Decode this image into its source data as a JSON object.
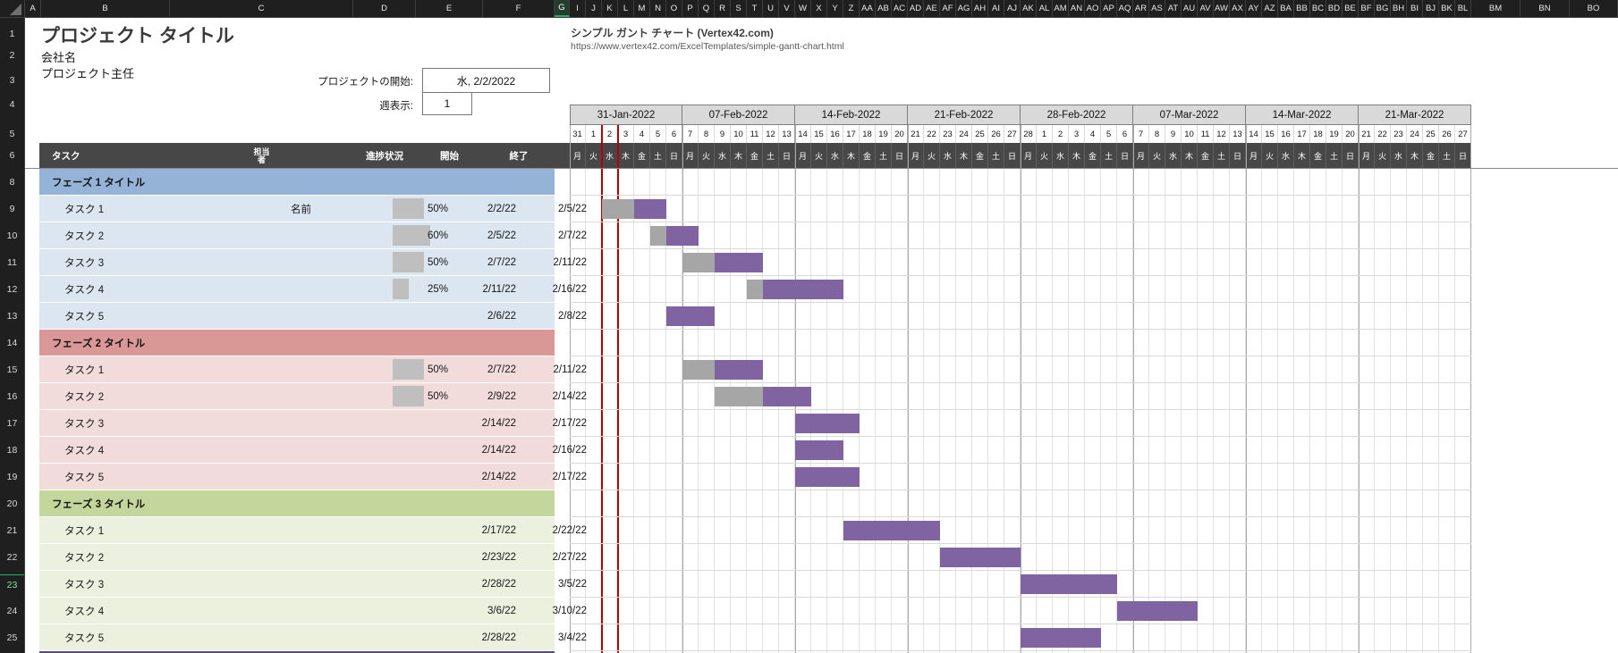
{
  "chrome": {
    "select_all": "select-all",
    "left_columns": [
      "A",
      "B",
      "C",
      "D",
      "E",
      "F",
      "G"
    ],
    "day_columns": [
      "I",
      "J",
      "K",
      "L",
      "M",
      "N",
      "O",
      "P",
      "Q",
      "R",
      "S",
      "T",
      "U",
      "V",
      "W",
      "X",
      "Y",
      "Z",
      "AA",
      "AB",
      "AC",
      "AD",
      "AE",
      "AF",
      "AG",
      "AH",
      "AI",
      "AJ",
      "AK",
      "AL",
      "AM",
      "AN",
      "AO",
      "AP",
      "AQ",
      "AR",
      "AS",
      "AT",
      "AU",
      "AV",
      "AW",
      "AX",
      "AY",
      "AZ",
      "BA",
      "BB",
      "BC",
      "BD",
      "BE",
      "BF",
      "BG",
      "BH",
      "BI",
      "BJ",
      "BK",
      "BL"
    ],
    "right_columns": [
      "BM",
      "BN",
      "BO"
    ],
    "selected_column": "G",
    "selected_row": "23",
    "row_numbers": [
      "1",
      "2",
      "3",
      "4",
      "5",
      "6",
      "8",
      "9",
      "10",
      "11",
      "12",
      "13",
      "14",
      "15",
      "16",
      "17",
      "18",
      "19",
      "20",
      "21",
      "22",
      "23",
      "24",
      "25"
    ]
  },
  "header": {
    "title": "プロジェクト タイトル",
    "company": "会社名",
    "manager": "プロジェクト主任",
    "template_name": "シンプル ガント チャート (Vertex42.com)",
    "template_url": "https://www.vertex42.com/ExcelTemplates/simple-gantt-chart.html",
    "project_start_label": "プロジェクトの開始:",
    "project_start_value": "水, 2/2/2022",
    "week_display_label": "週表示:",
    "week_display_value": "1"
  },
  "table_headers": {
    "task": "タスク",
    "owner_line1": "担当",
    "owner_line2": "者",
    "progress": "進捗状況",
    "start": "開始",
    "end": "終了"
  },
  "timeline": {
    "weekdays": [
      "月",
      "火",
      "水",
      "木",
      "金",
      "土",
      "日"
    ],
    "today_day_index": 2,
    "weeks": [
      {
        "label": "31-Jan-2022",
        "days": [
          "31",
          "1",
          "2",
          "3",
          "4",
          "5",
          "6"
        ]
      },
      {
        "label": "07-Feb-2022",
        "days": [
          "7",
          "8",
          "9",
          "10",
          "11",
          "12",
          "13"
        ]
      },
      {
        "label": "14-Feb-2022",
        "days": [
          "14",
          "15",
          "16",
          "17",
          "18",
          "19",
          "20"
        ]
      },
      {
        "label": "21-Feb-2022",
        "days": [
          "21",
          "22",
          "23",
          "24",
          "25",
          "26",
          "27"
        ]
      },
      {
        "label": "28-Feb-2022",
        "days": [
          "28",
          "1",
          "2",
          "3",
          "4",
          "5",
          "6"
        ]
      },
      {
        "label": "07-Mar-2022",
        "days": [
          "7",
          "8",
          "9",
          "10",
          "11",
          "12",
          "13"
        ]
      },
      {
        "label": "14-Mar-2022",
        "days": [
          "14",
          "15",
          "16",
          "17",
          "18",
          "19",
          "20"
        ]
      },
      {
        "label": "21-Mar-2022",
        "days": [
          "21",
          "22",
          "23",
          "24",
          "25",
          "26",
          "27"
        ]
      }
    ]
  },
  "colors": {
    "bar_purple": "#8064a2",
    "bar_gray": "#a6a6a6",
    "databar_gray": "#bfbfbf",
    "today_red": "#b30000",
    "phase1_header": "#95b3d7",
    "phase1_row": "#dce6f1",
    "phase2_header": "#d99795",
    "phase2_row": "#f2dcdb",
    "phase3_header": "#c3d69b",
    "phase3_row": "#ebf1de",
    "header_row_bg": "#474747"
  },
  "chart_data": {
    "type": "gantt",
    "sections": [
      {
        "title": "フェーズ 1 タイトル",
        "header_color": "#95b3d7",
        "row_color": "#dce6f1",
        "tasks": [
          {
            "name": "タスク 1",
            "owner": "名前",
            "progress": "50%",
            "progress_pct": 50,
            "start": "2/2/22",
            "end": "2/5/22",
            "bar": {
              "start_index": 2,
              "total_days": 4,
              "gray_days": 2
            }
          },
          {
            "name": "タスク 2",
            "owner": "",
            "progress": "60%",
            "progress_pct": 60,
            "start": "2/5/22",
            "end": "2/7/22",
            "bar": {
              "start_index": 5,
              "total_days": 3,
              "gray_days": 1
            }
          },
          {
            "name": "タスク 3",
            "owner": "",
            "progress": "50%",
            "progress_pct": 50,
            "start": "2/7/22",
            "end": "2/11/22",
            "bar": {
              "start_index": 7,
              "total_days": 5,
              "gray_days": 2
            }
          },
          {
            "name": "タスク 4",
            "owner": "",
            "progress": "25%",
            "progress_pct": 25,
            "start": "2/11/22",
            "end": "2/16/22",
            "bar": {
              "start_index": 11,
              "total_days": 6,
              "gray_days": 1
            }
          },
          {
            "name": "タスク 5",
            "owner": "",
            "progress": "",
            "progress_pct": 0,
            "start": "2/6/22",
            "end": "2/8/22",
            "bar": {
              "start_index": 6,
              "total_days": 3,
              "gray_days": 0
            }
          }
        ]
      },
      {
        "title": "フェーズ 2 タイトル",
        "header_color": "#d99795",
        "row_color": "#f2dcdb",
        "tasks": [
          {
            "name": "タスク 1",
            "owner": "",
            "progress": "50%",
            "progress_pct": 50,
            "start": "2/7/22",
            "end": "2/11/22",
            "bar": {
              "start_index": 7,
              "total_days": 5,
              "gray_days": 2
            }
          },
          {
            "name": "タスク 2",
            "owner": "",
            "progress": "50%",
            "progress_pct": 50,
            "start": "2/9/22",
            "end": "2/14/22",
            "bar": {
              "start_index": 9,
              "total_days": 6,
              "gray_days": 3
            }
          },
          {
            "name": "タスク 3",
            "owner": "",
            "progress": "",
            "progress_pct": 0,
            "start": "2/14/22",
            "end": "2/17/22",
            "bar": {
              "start_index": 14,
              "total_days": 4,
              "gray_days": 0
            }
          },
          {
            "name": "タスク 4",
            "owner": "",
            "progress": "",
            "progress_pct": 0,
            "start": "2/14/22",
            "end": "2/16/22",
            "bar": {
              "start_index": 14,
              "total_days": 3,
              "gray_days": 0
            }
          },
          {
            "name": "タスク 5",
            "owner": "",
            "progress": "",
            "progress_pct": 0,
            "start": "2/14/22",
            "end": "2/17/22",
            "bar": {
              "start_index": 14,
              "total_days": 4,
              "gray_days": 0
            }
          }
        ]
      },
      {
        "title": "フェーズ 3 タイトル",
        "header_color": "#c3d69b",
        "row_color": "#ebf1de",
        "tasks": [
          {
            "name": "タスク 1",
            "owner": "",
            "progress": "",
            "progress_pct": 0,
            "start": "2/17/22",
            "end": "2/22/22",
            "bar": {
              "start_index": 17,
              "total_days": 6,
              "gray_days": 0
            }
          },
          {
            "name": "タスク 2",
            "owner": "",
            "progress": "",
            "progress_pct": 0,
            "start": "2/23/22",
            "end": "2/27/22",
            "bar": {
              "start_index": 23,
              "total_days": 5,
              "gray_days": 0
            }
          },
          {
            "name": "タスク 3",
            "owner": "",
            "progress": "",
            "progress_pct": 0,
            "start": "2/28/22",
            "end": "3/5/22",
            "bar": {
              "start_index": 28,
              "total_days": 6,
              "gray_days": 0
            }
          },
          {
            "name": "タスク 4",
            "owner": "",
            "progress": "",
            "progress_pct": 0,
            "start": "3/6/22",
            "end": "3/10/22",
            "bar": {
              "start_index": 34,
              "total_days": 5,
              "gray_days": 0
            }
          },
          {
            "name": "タスク 5",
            "owner": "",
            "progress": "",
            "progress_pct": 0,
            "start": "2/28/22",
            "end": "3/4/22",
            "bar": {
              "start_index": 28,
              "total_days": 5,
              "gray_days": 0
            }
          }
        ]
      }
    ]
  }
}
